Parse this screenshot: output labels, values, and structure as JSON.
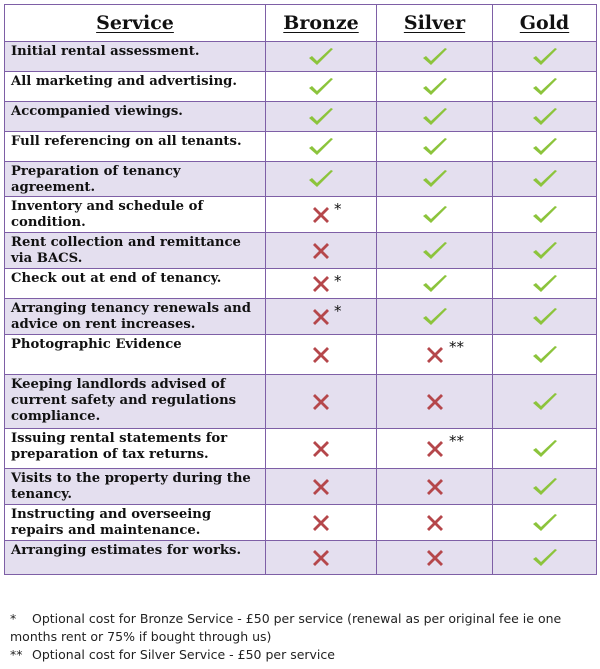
{
  "header": {
    "service": "Service",
    "bronze": "Bronze",
    "silver": "Silver",
    "gold": "Gold"
  },
  "rows": [
    {
      "service": "Initial rental assessment.",
      "bronze": "tick",
      "silver": "tick",
      "gold": "tick",
      "bronze_note": "",
      "silver_note": ""
    },
    {
      "service": "All marketing and advertising.",
      "bronze": "tick",
      "silver": "tick",
      "gold": "tick",
      "bronze_note": "",
      "silver_note": ""
    },
    {
      "service": "Accompanied viewings.",
      "bronze": "tick",
      "silver": "tick",
      "gold": "tick",
      "bronze_note": "",
      "silver_note": ""
    },
    {
      "service": "Full referencing on all tenants.",
      "bronze": "tick",
      "silver": "tick",
      "gold": "tick",
      "bronze_note": "",
      "silver_note": ""
    },
    {
      "service": "Preparation of tenancy agreement.",
      "bronze": "tick",
      "silver": "tick",
      "gold": "tick",
      "bronze_note": "",
      "silver_note": ""
    },
    {
      "service": "Inventory and schedule of condition.",
      "bronze": "cross",
      "silver": "tick",
      "gold": "tick",
      "bronze_note": "*",
      "silver_note": ""
    },
    {
      "service": "Rent collection and remittance via BACS.",
      "bronze": "cross",
      "silver": "tick",
      "gold": "tick",
      "bronze_note": "",
      "silver_note": ""
    },
    {
      "service": "Check out at end of tenancy.",
      "bronze": "cross",
      "silver": "tick",
      "gold": "tick",
      "bronze_note": "*",
      "silver_note": ""
    },
    {
      "service": "Arranging tenancy renewals and advice on rent increases.",
      "bronze": "cross",
      "silver": "tick",
      "gold": "tick",
      "bronze_note": "*",
      "silver_note": ""
    },
    {
      "service": "Photographic Evidence",
      "bronze": "cross",
      "silver": "cross",
      "gold": "tick",
      "bronze_note": "",
      "silver_note": "**"
    },
    {
      "service": "Keeping landlords advised of current safety and regulations compliance.",
      "bronze": "cross",
      "silver": "cross",
      "gold": "tick",
      "bronze_note": "",
      "silver_note": ""
    },
    {
      "service": "Issuing rental statements for preparation of tax returns.",
      "bronze": "cross",
      "silver": "cross",
      "gold": "tick",
      "bronze_note": "",
      "silver_note": "**"
    },
    {
      "service": "Visits to the property during the tenancy.",
      "bronze": "cross",
      "silver": "cross",
      "gold": "tick",
      "bronze_note": "",
      "silver_note": ""
    },
    {
      "service": "Instructing and overseeing repairs and maintenance.",
      "bronze": "cross",
      "silver": "cross",
      "gold": "tick",
      "bronze_note": "",
      "silver_note": ""
    },
    {
      "service": "Arranging estimates for works.",
      "bronze": "cross",
      "silver": "cross",
      "gold": "tick",
      "bronze_note": "",
      "silver_note": ""
    }
  ],
  "notes": [
    {
      "marker": "*",
      "text": "Optional cost for Bronze Service - £50 per service (renewal as per original fee ie one months rent or 75% if bought through us)"
    },
    {
      "marker": "**",
      "text": "Optional cost for Silver Service - £50 per service"
    }
  ],
  "colors": {
    "tick": "#8cc43c",
    "cross": "#b5474b",
    "row_shade": "#e4dfef",
    "border": "#7e5fa6"
  }
}
